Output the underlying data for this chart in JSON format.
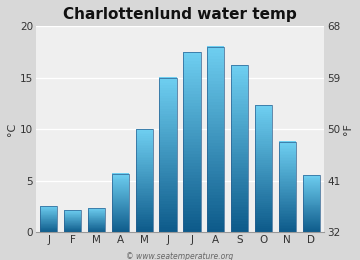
{
  "title": "Charlottenlund water temp",
  "months": [
    "J",
    "F",
    "M",
    "A",
    "M",
    "J",
    "J",
    "A",
    "S",
    "O",
    "N",
    "D"
  ],
  "values_c": [
    2.6,
    2.2,
    2.4,
    5.7,
    10.0,
    15.0,
    17.5,
    18.0,
    16.2,
    12.3,
    8.8,
    5.6
  ],
  "ylim_c": [
    0,
    20
  ],
  "yticks_c": [
    0,
    5,
    10,
    15,
    20
  ],
  "ylim_f": [
    32,
    68
  ],
  "yticks_f": [
    32,
    41,
    50,
    59,
    68
  ],
  "ylabel_left": "°C",
  "ylabel_right": "°F",
  "bar_color_top": "#6ecef0",
  "bar_color_bottom": "#0d5a8a",
  "bar_border_color": "#2a6090",
  "plot_bg_color": "#efefef",
  "fig_bg_color": "#d8d8d8",
  "grid_color": "#ffffff",
  "watermark": "© www.seatemperature.org",
  "title_fontsize": 11,
  "tick_fontsize": 7.5,
  "label_fontsize": 8,
  "watermark_fontsize": 5.5
}
